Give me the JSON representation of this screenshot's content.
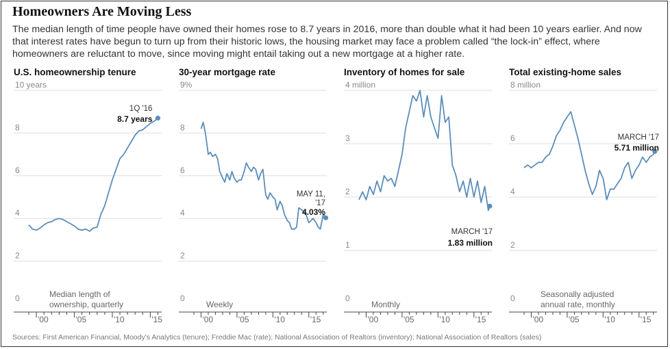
{
  "title": "Homeowners Are Moving Less",
  "deck": "The median length of time people have owned their homes rose to 8.7 years in 2016, more than double what it had been 10 years earlier. And now that interest rates have begun to turn up from their historic lows, the housing market may face a problem called “the lock-in” effect, where homeowners are reluctant to move, since moving might entail taking out a new mortgage at a higher rate.",
  "source": "Sources: First American Financial, Moody's Analytics (tenure); Freddie Mac (rate); National Association of Realtors (inventory); National Association of Realtors (sales)",
  "colors": {
    "line": "#5b8db8",
    "grid": "#dddddd",
    "axis": "#444444"
  },
  "chart_data": [
    {
      "type": "line",
      "title": "U.S. homeownership tenure",
      "y_tick_labels": [
        "10 years",
        "8",
        "6",
        "4",
        "2",
        "0"
      ],
      "x_tick_labels": [
        "'00",
        "'05",
        "'10",
        "'15"
      ],
      "note_lines": [
        "Median length of",
        "ownership, quarterly"
      ],
      "annotation": {
        "label": "1Q '16",
        "value_label": "8.7 years"
      },
      "x_range": [
        1999,
        2016.5
      ],
      "ylim": [
        0,
        10
      ],
      "x": [
        1999.0,
        1999.5,
        2000.0,
        2000.5,
        2001.0,
        2001.5,
        2002.0,
        2002.5,
        2003.0,
        2003.5,
        2004.0,
        2004.5,
        2005.0,
        2005.5,
        2006.0,
        2006.5,
        2007.0,
        2007.5,
        2008.0,
        2008.5,
        2009.0,
        2009.5,
        2010.0,
        2010.5,
        2011.0,
        2011.5,
        2012.0,
        2012.5,
        2013.0,
        2013.5,
        2014.0,
        2014.5,
        2015.0,
        2015.5,
        2016.0
      ],
      "y": [
        3.7,
        3.5,
        3.45,
        3.55,
        3.7,
        3.8,
        3.85,
        3.95,
        4.0,
        3.95,
        3.85,
        3.75,
        3.65,
        3.5,
        3.45,
        3.5,
        3.4,
        3.55,
        3.6,
        4.2,
        4.6,
        5.2,
        5.8,
        6.3,
        6.8,
        7.0,
        7.3,
        7.6,
        7.9,
        8.1,
        8.15,
        8.3,
        8.45,
        8.55,
        8.7
      ],
      "end_value": 8.7
    },
    {
      "type": "line",
      "title": "30-year mortgage rate",
      "y_tick_labels": [
        "9%",
        "8",
        "6",
        "4",
        "2",
        "0"
      ],
      "x_tick_labels": [
        "'00",
        "'05",
        "'10",
        "'15"
      ],
      "note_lines": [
        "Weekly"
      ],
      "annotation": {
        "label_lines": [
          "MAY 11,",
          "'17"
        ],
        "value_label": "4.03%"
      },
      "x_range": [
        1999,
        2017.5
      ],
      "ylim": [
        0,
        10
      ],
      "x": [
        2000.0,
        2000.3,
        2000.6,
        2001.0,
        2001.3,
        2001.6,
        2002.0,
        2002.3,
        2002.6,
        2003.0,
        2003.3,
        2003.6,
        2004.0,
        2004.3,
        2004.6,
        2005.0,
        2005.3,
        2005.6,
        2006.0,
        2006.3,
        2006.6,
        2007.0,
        2007.3,
        2007.6,
        2008.0,
        2008.3,
        2008.6,
        2009.0,
        2009.3,
        2009.6,
        2010.0,
        2010.3,
        2010.6,
        2011.0,
        2011.3,
        2011.6,
        2012.0,
        2012.3,
        2012.6,
        2013.0,
        2013.3,
        2013.6,
        2014.0,
        2014.3,
        2014.6,
        2015.0,
        2015.3,
        2015.6,
        2016.0,
        2016.3,
        2016.6,
        2017.0,
        2017.36
      ],
      "y": [
        8.2,
        8.5,
        8.0,
        7.0,
        7.1,
        6.9,
        7.0,
        6.8,
        6.2,
        5.9,
        5.7,
        6.1,
        5.8,
        6.2,
        5.9,
        5.7,
        5.8,
        5.8,
        6.2,
        6.6,
        6.4,
        6.2,
        6.4,
        6.3,
        5.8,
        6.1,
        6.3,
        5.1,
        4.9,
        5.2,
        5.0,
        4.9,
        4.4,
        4.8,
        4.6,
        4.2,
        3.9,
        3.8,
        3.5,
        3.5,
        3.6,
        4.5,
        4.4,
        4.3,
        4.2,
        3.8,
        3.9,
        4.0,
        3.8,
        3.6,
        3.5,
        4.2,
        4.03
      ],
      "end_value": 4.03
    },
    {
      "type": "line",
      "title": "Inventory of homes for sale",
      "y_tick_labels": [
        "4 million",
        "3",
        "2",
        "1",
        "0"
      ],
      "x_tick_labels": [
        "'00",
        "'05",
        "'10",
        "'15"
      ],
      "note_lines": [
        "Monthly"
      ],
      "annotation": {
        "label": "MARCH '17",
        "value_label": "1.83 million"
      },
      "x_range": [
        1999,
        2017.5
      ],
      "ylim": [
        0,
        4
      ],
      "x": [
        1999.0,
        1999.5,
        2000.0,
        2000.5,
        2001.0,
        2001.5,
        2002.0,
        2002.5,
        2003.0,
        2003.5,
        2004.0,
        2004.5,
        2005.0,
        2005.5,
        2006.0,
        2006.5,
        2007.0,
        2007.5,
        2008.0,
        2008.5,
        2009.0,
        2009.5,
        2010.0,
        2010.5,
        2011.0,
        2011.5,
        2012.0,
        2012.5,
        2013.0,
        2013.5,
        2014.0,
        2014.5,
        2015.0,
        2015.5,
        2016.0,
        2016.5,
        2017.0,
        2017.2
      ],
      "y": [
        1.95,
        2.1,
        1.95,
        2.2,
        2.05,
        2.3,
        2.1,
        2.4,
        2.3,
        2.35,
        2.2,
        2.5,
        2.8,
        3.3,
        3.6,
        3.9,
        3.8,
        4.0,
        3.5,
        3.9,
        3.5,
        3.3,
        3.1,
        3.9,
        3.4,
        3.5,
        2.6,
        2.4,
        2.1,
        2.3,
        2.0,
        2.35,
        2.0,
        2.3,
        1.9,
        2.2,
        1.75,
        1.83
      ],
      "end_value": 1.83
    },
    {
      "type": "line",
      "title": "Total existing-home sales",
      "y_tick_labels": [
        "8 million",
        "6",
        "4",
        "2",
        "0"
      ],
      "x_tick_labels": [
        "'00",
        "'05",
        "'10",
        "'15"
      ],
      "note_lines": [
        "Seasonally adjusted",
        "annual rate, monthly"
      ],
      "annotation": {
        "label": "MARCH '17",
        "value_label": "5.71 million"
      },
      "x_range": [
        1999,
        2017.5
      ],
      "ylim": [
        0,
        8
      ],
      "x": [
        1999.0,
        1999.5,
        2000.0,
        2000.5,
        2001.0,
        2001.5,
        2002.0,
        2002.5,
        2003.0,
        2003.5,
        2004.0,
        2004.5,
        2005.0,
        2005.5,
        2006.0,
        2006.5,
        2007.0,
        2007.5,
        2008.0,
        2008.5,
        2009.0,
        2009.5,
        2010.0,
        2010.5,
        2011.0,
        2011.5,
        2012.0,
        2012.5,
        2013.0,
        2013.5,
        2014.0,
        2014.5,
        2015.0,
        2015.5,
        2016.0,
        2016.5,
        2017.0,
        2017.2
      ],
      "y": [
        5.1,
        5.2,
        5.1,
        5.2,
        5.3,
        5.3,
        5.5,
        5.6,
        5.9,
        6.3,
        6.5,
        6.8,
        7.0,
        7.2,
        6.7,
        6.2,
        5.6,
        5.0,
        4.5,
        4.1,
        4.4,
        5.0,
        4.7,
        3.9,
        4.3,
        4.3,
        4.5,
        4.7,
        5.1,
        5.3,
        4.7,
        5.0,
        5.2,
        5.5,
        5.3,
        5.5,
        5.6,
        5.71
      ],
      "end_value": 5.71
    }
  ]
}
